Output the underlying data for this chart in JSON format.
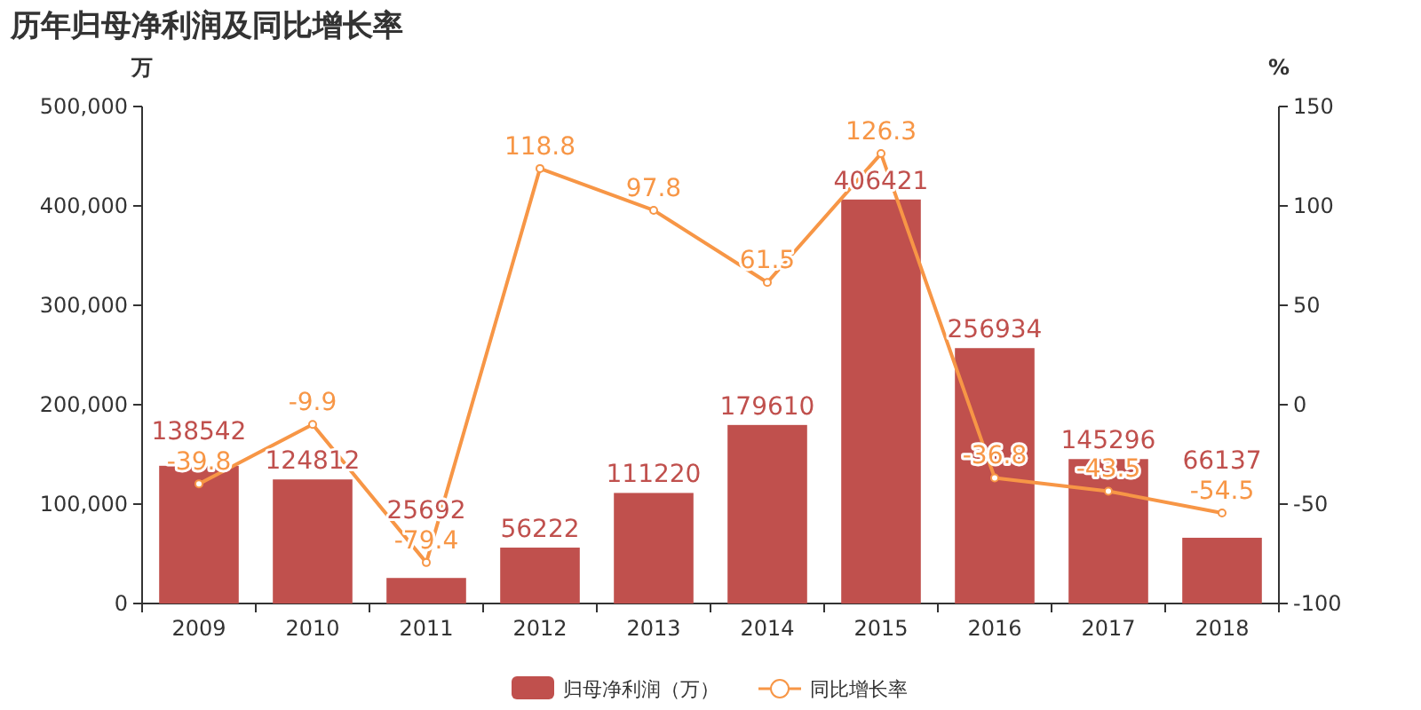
{
  "chart_data": {
    "type": "bar",
    "title": "历年归母净利润及同比增长率",
    "ylabel": "万",
    "y2label": "%",
    "categories": [
      "2009",
      "2010",
      "2011",
      "2012",
      "2013",
      "2014",
      "2015",
      "2016",
      "2017",
      "2018"
    ],
    "series": [
      {
        "name": "归母净利润（万）",
        "color": "#c0504d",
        "values": [
          138542,
          124812,
          25692,
          56222,
          111220,
          179610,
          406421,
          256934,
          145296,
          66137
        ]
      },
      {
        "name": "同比增长率",
        "type": "line",
        "axis": "y2",
        "color": "#f79646",
        "marker": "circle",
        "values": [
          -39.8,
          -9.9,
          -79.4,
          118.8,
          97.8,
          61.5,
          126.3,
          -36.8,
          -43.5,
          -54.5
        ]
      }
    ],
    "ylim": [
      0,
      500000
    ],
    "yticks": [
      0,
      {
        "value": 100000,
        "label": "100,000"
      },
      {
        "value": 200000,
        "label": "200,000"
      },
      {
        "value": 300000,
        "label": "300,000"
      },
      {
        "value": 400000,
        "label": "400,000"
      },
      {
        "value": 500000,
        "label": "500,000"
      }
    ],
    "y2lim": [
      -100,
      150
    ],
    "y2ticks": [
      -100,
      -50,
      0,
      50,
      100,
      150
    ],
    "data_labels": true,
    "legend": "bottom",
    "grid": false
  }
}
